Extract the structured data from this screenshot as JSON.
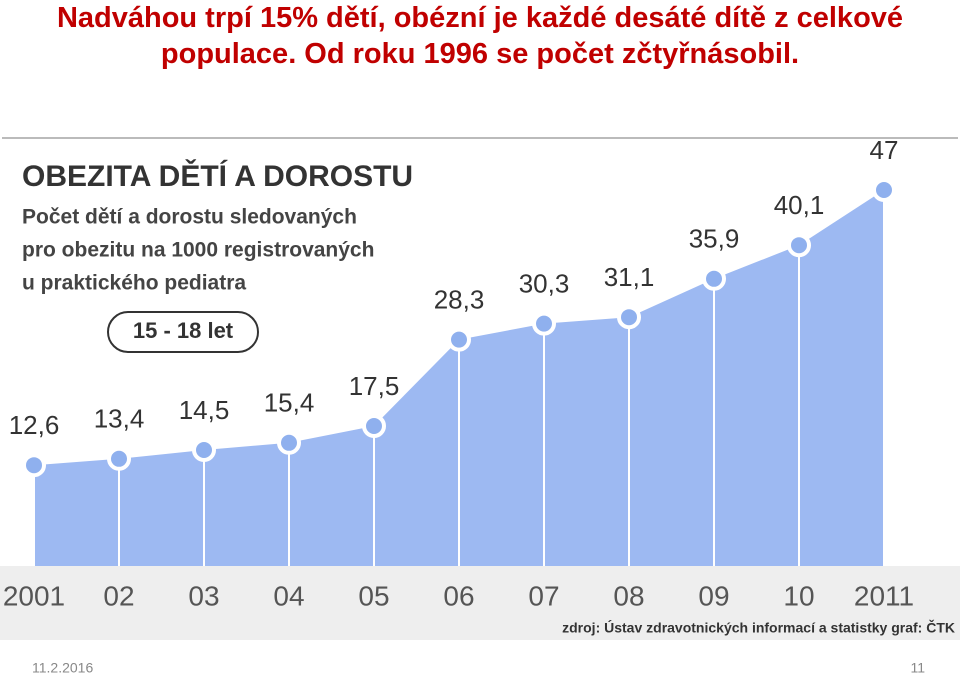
{
  "slide_title": [
    "Nadváhou trpí 15% dětí, obézní je každé desáté dítě  z celkové",
    "populace. Od roku 1996 se počet zčtyřnásobil."
  ],
  "chart_data": {
    "type": "area",
    "title": "OBEZITA DĚTÍ A DOROSTU",
    "subtitle": [
      "Počet dětí a dorostu sledovaných",
      "pro obezitu na 1000 registrovaných",
      "u praktického pediatra"
    ],
    "annotation": "15 - 18 let",
    "source": "zdroj: Ústav zdravotnických informací a statistky graf: ČTK",
    "categories": [
      "2001",
      "02",
      "03",
      "04",
      "05",
      "06",
      "07",
      "08",
      "09",
      "10",
      "2011"
    ],
    "values": [
      12.6,
      13.4,
      14.5,
      15.4,
      17.5,
      28.3,
      30.3,
      31.1,
      35.9,
      40.1,
      47
    ],
    "value_labels": [
      "12,6",
      "13,4",
      "14,5",
      "15,4",
      "17,5",
      "28,3",
      "30,3",
      "31,1",
      "35,9",
      "40,1",
      "47"
    ],
    "color": "#9db9f2"
  },
  "footer": {
    "date": "11.2.2016",
    "page": "11"
  }
}
